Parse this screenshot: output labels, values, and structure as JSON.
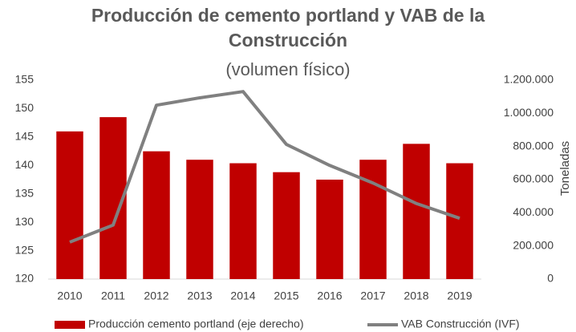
{
  "chart_data": {
    "type": "bar_line",
    "title": "Producción de cemento portland y VAB de la Construcción",
    "subtitle": "(volumen físico)",
    "y2label": "Toneladas",
    "categories": [
      "2010",
      "2011",
      "2012",
      "2013",
      "2014",
      "2015",
      "2016",
      "2017",
      "2018",
      "2019"
    ],
    "series": [
      {
        "name": "Producción cemento portland (eje derecho)",
        "color": "#c00000",
        "type": "bar",
        "axis": "y2",
        "values": [
          891000,
          977000,
          771000,
          720000,
          699000,
          645000,
          600000,
          720000,
          816000,
          699000
        ]
      },
      {
        "name": "VAB Construcción (IVF)",
        "color": "#808080",
        "type": "line",
        "axis": "y",
        "values": [
          126.5,
          129.5,
          150.6,
          151.9,
          153,
          143.7,
          140,
          136.9,
          133.3,
          130.7
        ]
      }
    ],
    "ylim": [
      120,
      155
    ],
    "yticks": [
      120,
      125,
      130,
      135,
      140,
      145,
      150,
      155
    ],
    "y2lim": [
      0,
      1200000
    ],
    "y2ticks": [
      0,
      {
        "value": 200000,
        "label": "200.000"
      },
      {
        "value": 400000,
        "label": "400.000"
      },
      {
        "value": 600000,
        "label": "600.000"
      },
      {
        "value": 800000,
        "label": "800.000"
      },
      {
        "value": 1000000,
        "label": "1.000.000"
      },
      {
        "value": 1200000,
        "label": "1.200.000"
      }
    ],
    "grid": false,
    "legend": "bottom"
  }
}
